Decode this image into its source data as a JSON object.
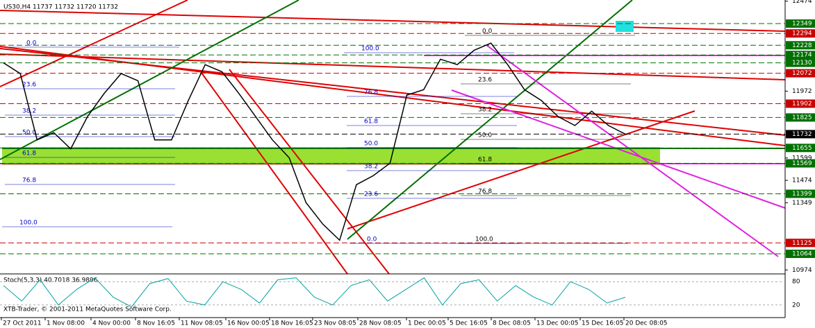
{
  "header": "US30,H4  11737 11732 11720 11732",
  "price_axis": [
    {
      "value": 12474,
      "color": "none"
    },
    {
      "value": 12349,
      "color": "#007000"
    },
    {
      "value": 12294,
      "color": "#c80000"
    },
    {
      "value": 12228,
      "color": "#007000"
    },
    {
      "value": 12174,
      "color": "#007000"
    },
    {
      "value": 12130,
      "color": "#007000"
    },
    {
      "value": 12072,
      "color": "#c80000"
    },
    {
      "value": 11972,
      "color": "none"
    },
    {
      "value": 11902,
      "color": "#c80000"
    },
    {
      "value": 11825,
      "color": "#007000"
    },
    {
      "value": 11732,
      "color": "#000000"
    },
    {
      "value": 11655,
      "color": "#007000"
    },
    {
      "value": 11599,
      "color": "none"
    },
    {
      "value": 11569,
      "color": "#007000"
    },
    {
      "value": 11474,
      "color": "none"
    },
    {
      "value": 11399,
      "color": "#007000"
    },
    {
      "value": 11349,
      "color": "none"
    },
    {
      "value": 11125,
      "color": "#c80000"
    },
    {
      "value": 11064,
      "color": "#007000"
    },
    {
      "value": 10974,
      "color": "none"
    }
  ],
  "time_axis": [
    "27 Oct 2011",
    "1 Nov 08:00",
    "4 Nov 00:00",
    "8 Nov 16:05",
    "11 Nov 08:05",
    "16 Nov 00:05",
    "18 Nov 16:05",
    "23 Nov 08:05",
    "28 Nov 08:05",
    "1 Dec 00:05",
    "5 Dec 16:05",
    "8 Dec 08:05",
    "13 Dec 00:05",
    "15 Dec 16:05",
    "20 Dec 08:05"
  ],
  "fib_left": [
    "0.0",
    "23.6",
    "38.2",
    "50.0",
    "61.8",
    "76.8",
    "100.0"
  ],
  "fib_middle": [
    "100.0",
    "76.8",
    "61.8",
    "50.0",
    "38.2",
    "23.6",
    "0.0"
  ],
  "fib_right": [
    "0.0",
    "23.6",
    "38.2",
    "50.0",
    "61.8",
    "76.8",
    "100.0"
  ],
  "closes": [
    12130,
    12070,
    11700,
    11740,
    11650,
    11830,
    11960,
    12070,
    12030,
    11700,
    11700,
    11920,
    12120,
    12080,
    11960,
    11830,
    11700,
    11600,
    11350,
    11230,
    11140,
    11450,
    11500,
    11570,
    11950,
    11980,
    12150,
    12120,
    12200,
    12240,
    12120,
    11980,
    11920,
    11830,
    11780,
    11860,
    11780,
    11732
  ],
  "stoch_label": "Stoch(5,3,3) 40.7018 36.9896",
  "stoch_axis": [
    80,
    20
  ],
  "stoch_values": [
    70,
    30,
    85,
    20,
    60,
    90,
    40,
    15,
    75,
    88,
    30,
    20,
    80,
    60,
    25,
    85,
    90,
    40,
    20,
    70,
    85,
    30,
    60,
    90,
    20,
    75,
    85,
    30,
    70,
    40,
    20,
    80,
    60,
    25,
    40
  ],
  "copyright": "XTB-Trader, © 2001-2011 MetaQuotes Software Corp."
}
